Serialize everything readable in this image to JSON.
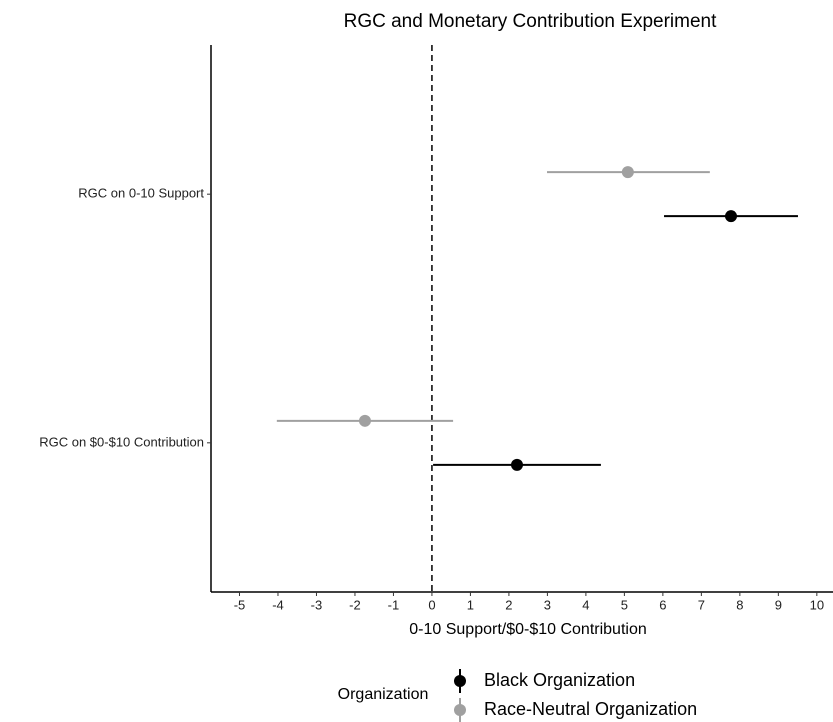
{
  "chart_data": {
    "type": "dot-errorbar",
    "title": "RGC and Monetary Contribution Experiment",
    "x_label": "0-10 Support/$0-$10 Contribution",
    "categories": [
      "RGC on 0-10 Support",
      "RGC on $0-$10 Contribution"
    ],
    "legend_title": "Organization",
    "legend_position": "bottom",
    "series": [
      {
        "name": "Black Organization",
        "color": "#000000",
        "values": [
          7.77,
          2.21
        ],
        "lower": [
          6.03,
          0.03
        ],
        "upper": [
          9.51,
          4.39
        ]
      },
      {
        "name": "Race-Neutral Organization",
        "color": "#a0a0a0",
        "values": [
          5.09,
          -1.74
        ],
        "lower": [
          2.99,
          -4.03
        ],
        "upper": [
          7.22,
          0.55
        ]
      }
    ],
    "xlim": [
      -5.74,
      10.42
    ],
    "xticks": [
      -5,
      -4,
      -3,
      -2,
      -1,
      0,
      1,
      2,
      3,
      4,
      5,
      6,
      7,
      8,
      9,
      10
    ],
    "reference_line": 0
  }
}
